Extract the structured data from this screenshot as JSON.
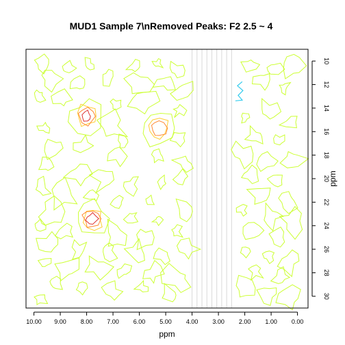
{
  "chart_data": {
    "type": "contour",
    "title": "MUD1 Sample 7\\nRemoved Peaks: F2 2.5 ~ 4",
    "xlabel": "ppm",
    "ylabel": "ppm",
    "xlim": [
      10.3,
      -0.4
    ],
    "ylim": [
      9.0,
      31.0
    ],
    "x_ticks": [
      10,
      9,
      8,
      7,
      6,
      5,
      4,
      3,
      2,
      1,
      0
    ],
    "x_tick_labels": [
      "10.00",
      "9.00",
      "8.00",
      "7.00",
      "6.00",
      "5.00",
      "4.00",
      "3.00",
      "2.00",
      "1.00",
      "0.00"
    ],
    "y_ticks": [
      10,
      12,
      14,
      16,
      18,
      20,
      22,
      24,
      26,
      28,
      30
    ],
    "y_tick_labels": [
      "10",
      "12",
      "14",
      "16",
      "18",
      "20",
      "22",
      "24",
      "26",
      "28",
      "30"
    ],
    "removed_region": {
      "x_from": 4.0,
      "x_to": 2.5,
      "line_color": "#d8d8d8"
    },
    "level_colors": [
      "#ccff33",
      "#ffcc33",
      "#ff8833",
      "#dd3333",
      "#33ccee"
    ],
    "peaks": [
      {
        "x": 8.0,
        "y": 14.7,
        "levels": 4
      },
      {
        "x": 5.3,
        "y": 15.7,
        "levels": 3
      },
      {
        "x": 7.8,
        "y": 23.4,
        "levels": 4
      }
    ],
    "negative_contour": {
      "x": 2.2,
      "y": 12.8,
      "color": "#33ccee"
    },
    "noise_contours": [
      [
        9.7,
        10.2
      ],
      [
        8.7,
        10.6
      ],
      [
        7.9,
        10.3
      ],
      [
        6.2,
        10.5
      ],
      [
        5.3,
        10.2
      ],
      [
        4.6,
        10.8
      ],
      [
        9.4,
        11.5
      ],
      [
        8.3,
        12.0
      ],
      [
        7.2,
        11.3
      ],
      [
        6.0,
        12.0
      ],
      [
        5.0,
        11.8
      ],
      [
        4.4,
        12.5
      ],
      [
        9.8,
        12.9
      ],
      [
        8.9,
        13.3
      ],
      [
        6.9,
        13.6
      ],
      [
        5.9,
        13.4
      ],
      [
        4.5,
        14.2
      ],
      [
        9.6,
        15.7
      ],
      [
        7.0,
        15.5
      ],
      [
        6.6,
        16.9
      ],
      [
        4.5,
        16.5
      ],
      [
        9.2,
        17.4
      ],
      [
        8.1,
        17.2
      ],
      [
        6.8,
        18.1
      ],
      [
        5.3,
        18.1
      ],
      [
        4.3,
        18.7
      ],
      [
        9.5,
        19.0
      ],
      [
        8.3,
        19.6
      ],
      [
        7.3,
        20.1
      ],
      [
        6.3,
        20.5
      ],
      [
        5.1,
        20.4
      ],
      [
        4.4,
        19.8
      ],
      [
        9.7,
        20.8
      ],
      [
        8.9,
        21.4
      ],
      [
        7.8,
        21.4
      ],
      [
        6.8,
        22.0
      ],
      [
        5.6,
        21.9
      ],
      [
        9.3,
        22.8
      ],
      [
        6.3,
        23.2
      ],
      [
        5.3,
        23.5
      ],
      [
        4.3,
        22.8
      ],
      [
        9.8,
        24.0
      ],
      [
        8.8,
        24.5
      ],
      [
        6.9,
        24.8
      ],
      [
        5.8,
        25.0
      ],
      [
        4.6,
        24.5
      ],
      [
        9.4,
        25.6
      ],
      [
        8.3,
        26.1
      ],
      [
        7.2,
        26.1
      ],
      [
        6.1,
        26.4
      ],
      [
        5.1,
        26.5
      ],
      [
        4.2,
        26.0
      ],
      [
        9.6,
        27.2
      ],
      [
        8.7,
        27.7
      ],
      [
        7.6,
        27.5
      ],
      [
        6.6,
        27.9
      ],
      [
        5.5,
        28.1
      ],
      [
        4.5,
        28.5
      ],
      [
        9.2,
        28.9
      ],
      [
        8.2,
        29.3
      ],
      [
        7.0,
        29.6
      ],
      [
        5.9,
        29.2
      ],
      [
        4.8,
        29.9
      ],
      [
        9.8,
        30.2
      ],
      [
        1.8,
        10.3
      ],
      [
        0.9,
        10.7
      ],
      [
        0.2,
        10.4
      ],
      [
        1.3,
        11.6
      ],
      [
        0.5,
        12.2
      ],
      [
        2.0,
        14.8
      ],
      [
        1.1,
        14.3
      ],
      [
        0.3,
        15.2
      ],
      [
        1.6,
        16.4
      ],
      [
        0.7,
        16.8
      ],
      [
        2.1,
        17.9
      ],
      [
        1.2,
        18.5
      ],
      [
        0.2,
        18.3
      ],
      [
        1.8,
        19.7
      ],
      [
        0.8,
        20.2
      ],
      [
        1.4,
        21.4
      ],
      [
        0.4,
        21.9
      ],
      [
        2.1,
        22.7
      ],
      [
        1.0,
        23.2
      ],
      [
        0.2,
        23.6
      ],
      [
        1.7,
        24.4
      ],
      [
        0.7,
        25.0
      ],
      [
        2.0,
        26.2
      ],
      [
        1.1,
        26.6
      ],
      [
        0.3,
        27.0
      ],
      [
        1.6,
        27.9
      ],
      [
        0.6,
        28.4
      ],
      [
        2.0,
        29.3
      ],
      [
        1.1,
        29.8
      ],
      [
        0.3,
        30.2
      ]
    ]
  }
}
